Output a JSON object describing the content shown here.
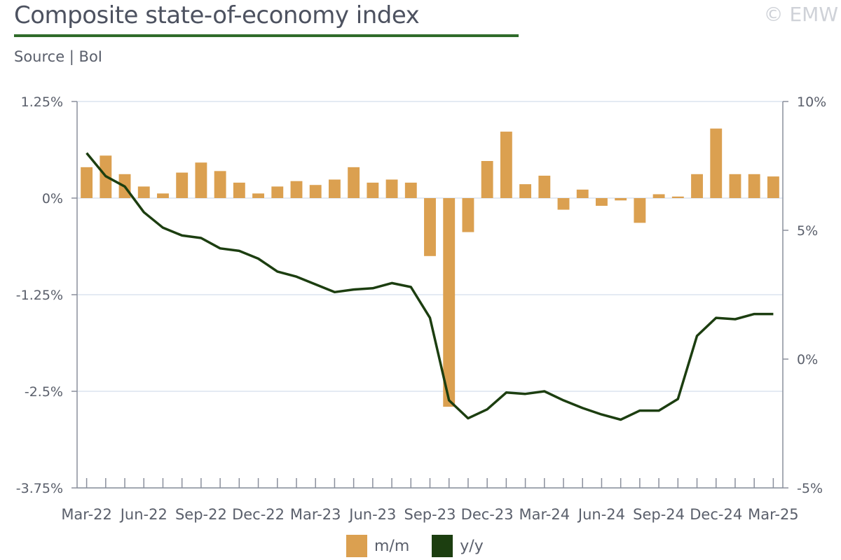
{
  "header": {
    "title": "Composite state-of-economy index",
    "subtitle": "Source | BoI",
    "watermark": "© EMW"
  },
  "chart_data": {
    "type": "bar+line",
    "categories": [
      "Mar-22",
      "Apr-22",
      "May-22",
      "Jun-22",
      "Jul-22",
      "Aug-22",
      "Sep-22",
      "Oct-22",
      "Nov-22",
      "Dec-22",
      "Jan-23",
      "Feb-23",
      "Mar-23",
      "Apr-23",
      "May-23",
      "Jun-23",
      "Jul-23",
      "Aug-23",
      "Sep-23",
      "Oct-23",
      "Nov-23",
      "Dec-23",
      "Jan-24",
      "Feb-24",
      "Mar-24",
      "Apr-24",
      "May-24",
      "Jun-24",
      "Jul-24",
      "Aug-24",
      "Sep-24",
      "Oct-24",
      "Nov-24",
      "Dec-24",
      "Jan-25",
      "Feb-25",
      "Mar-25"
    ],
    "x_tick_labels": [
      "Mar-22",
      "Jun-22",
      "Sep-22",
      "Dec-22",
      "Mar-23",
      "Jun-23",
      "Sep-23",
      "Dec-23",
      "Mar-24",
      "Jun-24",
      "Sep-24",
      "Dec-24",
      "Mar-25"
    ],
    "left_axis": {
      "ylim": [
        -3.75,
        1.25
      ],
      "ticks": [
        "1.25%",
        "0%",
        "-1.25%",
        "-2.5%",
        "-3.75%"
      ],
      "tick_values": [
        1.25,
        0,
        -1.25,
        -2.5,
        -3.75
      ]
    },
    "right_axis": {
      "ylim": [
        -5,
        10
      ],
      "ticks": [
        "10%",
        "5%",
        "0%",
        "-5%"
      ],
      "tick_values": [
        10,
        5,
        0,
        -5
      ]
    },
    "grid": true,
    "legend_position": "bottom-center",
    "series": [
      {
        "name": "m/m",
        "type": "bar",
        "axis": "left",
        "color": "#dba050",
        "values": [
          0.4,
          0.55,
          0.31,
          0.15,
          0.06,
          0.33,
          0.46,
          0.35,
          0.2,
          0.06,
          0.15,
          0.22,
          0.17,
          0.24,
          0.4,
          0.2,
          0.24,
          0.2,
          -0.75,
          -2.7,
          -0.44,
          0.48,
          0.86,
          0.18,
          0.29,
          -0.15,
          0.11,
          -0.1,
          -0.03,
          -0.32,
          0.05,
          0.02,
          0.31,
          0.9,
          0.31,
          0.31,
          0.28
        ]
      },
      {
        "name": "y/y",
        "type": "line",
        "axis": "right",
        "color": "#1c3e10",
        "values": [
          8.0,
          7.1,
          6.7,
          5.7,
          5.1,
          4.8,
          4.7,
          4.3,
          4.2,
          3.9,
          3.4,
          3.2,
          2.9,
          2.6,
          2.7,
          2.75,
          2.95,
          2.8,
          1.6,
          -1.6,
          -2.3,
          -1.95,
          -1.3,
          -1.35,
          -1.25,
          -1.6,
          -1.9,
          -2.15,
          -2.35,
          -2.0,
          -2.0,
          -1.55,
          0.9,
          1.6,
          1.55,
          1.75,
          1.75
        ]
      }
    ]
  }
}
